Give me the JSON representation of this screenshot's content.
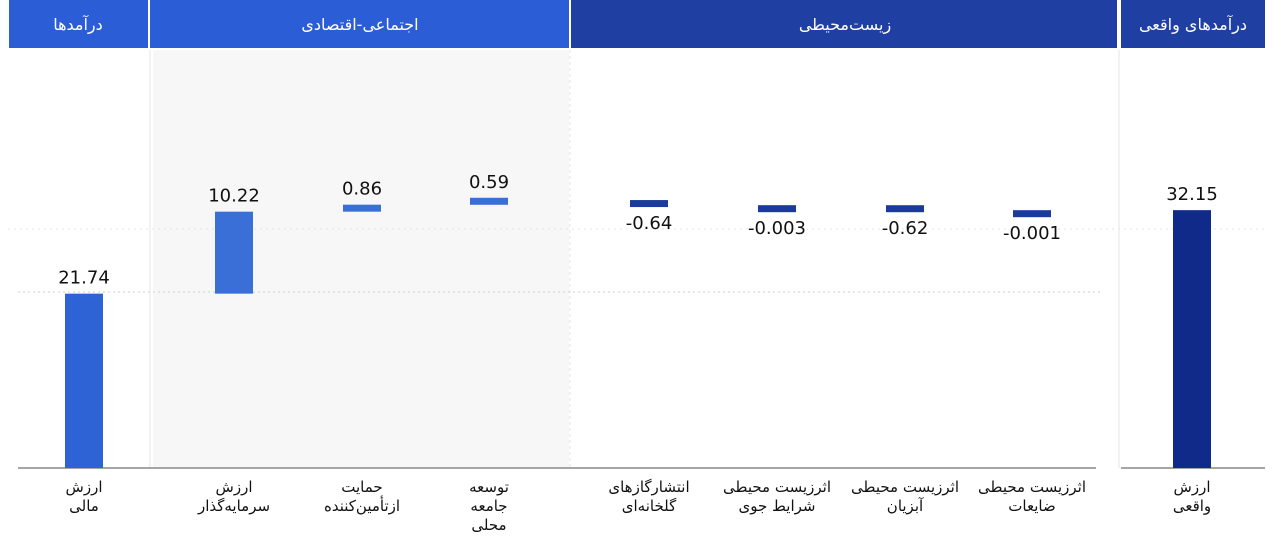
{
  "colors": {
    "header_light": "#2b5ed6",
    "header_dark": "#1f3fa3",
    "bar_light": "#2e63d6",
    "bar_mid": "#3a6fd8",
    "bar_dark": "#1a3a9e",
    "bar_total": "#0f2a88",
    "shaded_bg": "#f7f7f7",
    "baseline": "#888888"
  },
  "headers": {
    "financial": "درآمدها",
    "socio_economic": "اجتماعی-اقتصادی",
    "environmental": "زیست‌محیطی",
    "real_income": "درآمدهای واقعی"
  },
  "chart_data": {
    "type": "bar",
    "subtype": "waterfall",
    "categories": [
      [
        "ارزش",
        "مالی"
      ],
      [
        "ارزش",
        "سرمایه‌گذار"
      ],
      [
        "حمایت",
        "ازتأمین‌کننده"
      ],
      [
        "توسعه",
        "جامعه",
        "محلی"
      ],
      [
        "انتشارگازهای",
        "گلخانه‌ای"
      ],
      [
        "اثرزیست محیطی",
        "شرایط جوی"
      ],
      [
        "اثرزیست محیطی",
        "آبزیان"
      ],
      [
        "اثرزیست محیطی",
        "ضایعات"
      ],
      [
        "ارزش",
        "واقعی"
      ]
    ],
    "values": [
      21.74,
      10.22,
      0.86,
      0.59,
      -0.64,
      -0.003,
      -0.62,
      -0.001,
      32.15
    ],
    "labels": [
      "21.74",
      "10.22",
      "0.86",
      "0.59",
      "-0.64",
      "-0.003",
      "-0.62",
      "-0.001",
      "32.15"
    ],
    "groups": [
      "financial",
      "socio_economic",
      "socio_economic",
      "socio_economic",
      "environmental",
      "environmental",
      "environmental",
      "environmental",
      "real_income"
    ],
    "color_keys": [
      "bar_light",
      "bar_mid",
      "bar_mid",
      "bar_mid",
      "bar_dark",
      "bar_dark",
      "bar_dark",
      "bar_dark",
      "bar_total"
    ],
    "total_indices": [
      0,
      8
    ],
    "grid": false
  }
}
